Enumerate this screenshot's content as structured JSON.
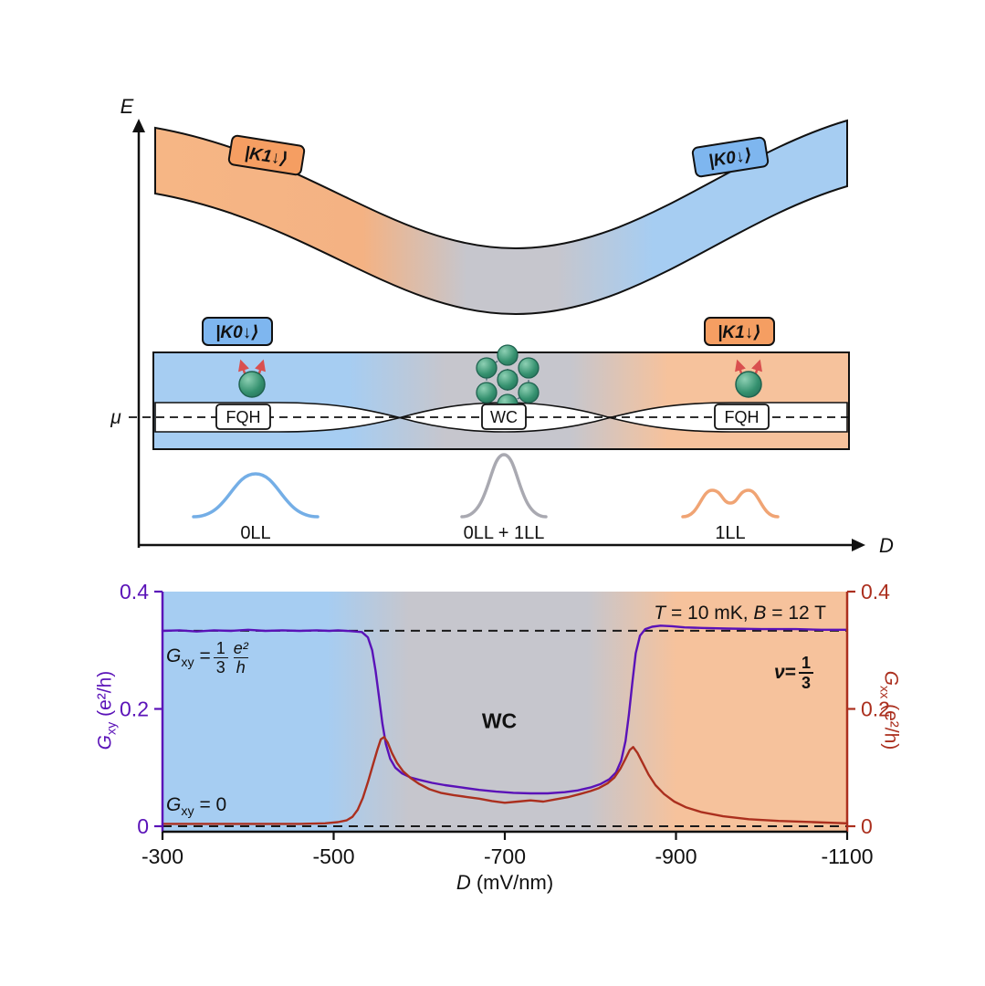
{
  "colors": {
    "blue_region": "#a6cdf2",
    "gray_region": "#c6c6cd",
    "orange_region": "#f6c29c",
    "badge_blue": "#7eb6ef",
    "badge_orange": "#f59e62",
    "wf_blue": "#74aee6",
    "wf_gray": "#a9a9b1",
    "wf_orange": "#f0a474",
    "sphere_green": "#35916f",
    "flux_red": "#d94f4f",
    "gxy_purple": "#5a12b8",
    "gxx_red": "#ab2f1e"
  },
  "diagram": {
    "axis_e": "E",
    "axis_d": "D",
    "mu": "μ",
    "badge_top_left": "|K1↓⟩",
    "badge_top_right": "|K0↓⟩",
    "badge_band_left": "|K0↓⟩",
    "badge_band_right": "|K1↓⟩",
    "box_left": "FQH",
    "box_center": "WC",
    "box_right": "FQH",
    "wf_left_label": "0LL",
    "wf_center_label": "0LL + 1LL",
    "wf_right_label": "1LL"
  },
  "chart": {
    "cond_t_var": "T",
    "cond_t_rest": " = 10 mK, ",
    "cond_b_var": "B",
    "cond_b_rest": " = 12 T",
    "gxy_var": "G",
    "gxy_sub": "xy",
    "eq": " = ",
    "eq_zero": " = 0",
    "third_num": "1",
    "third_den": "3",
    "e2h_num": "e²",
    "e2h_den": "h",
    "nu_var": "ν",
    "wc_label": "WC",
    "ylabel_left_var": "G",
    "ylabel_left_sub": "xy",
    "ylabel_left_units": " (e²/h)",
    "ylabel_right_var": "G",
    "ylabel_right_sub": "xx",
    "ylabel_right_units": " (e²/h)",
    "xlabel_var": "D",
    "xlabel_units": " (mV/nm)"
  },
  "chart_data": {
    "type": "line",
    "title": "",
    "xlabel": "D (mV/nm)",
    "ylabel_left": "Gxy (e2/h)",
    "ylabel_right": "Gxx (e2/h)",
    "x_range": [
      -300,
      -1100
    ],
    "y_range": [
      0,
      0.4
    ],
    "x_ticks": [
      -300,
      -500,
      -700,
      -900,
      -1100
    ],
    "y_ticks": [
      0,
      0.2,
      0.4
    ],
    "dashed_lines_y": [
      0.3333,
      0
    ],
    "grid": false,
    "annotations": [
      "T = 10 mK, B = 12 T",
      "Gxy = (1/3)(e2/h)",
      "WC",
      "nu = 1/3",
      "Gxy = 0"
    ],
    "regions": [
      {
        "label": "0LL FQH",
        "x_from": -300,
        "x_to": -545,
        "color": "#a6cdf2"
      },
      {
        "label": "WC 0LL+1LL",
        "x_from": -545,
        "x_to": -845,
        "color": "#c6c6cd"
      },
      {
        "label": "1LL FQH",
        "x_from": -845,
        "x_to": -1100,
        "color": "#f6c29c"
      }
    ],
    "series": [
      {
        "name": "Gxy",
        "color": "#5a12b8",
        "x": [
          -300,
          -320,
          -340,
          -360,
          -380,
          -400,
          -420,
          -440,
          -460,
          -480,
          -495,
          -505,
          -515,
          -525,
          -533,
          -540,
          -545,
          -549,
          -553,
          -557,
          -561,
          -566,
          -572,
          -580,
          -590,
          -600,
          -615,
          -630,
          -650,
          -670,
          -690,
          -710,
          -730,
          -750,
          -770,
          -785,
          -800,
          -812,
          -822,
          -830,
          -836,
          -841,
          -845,
          -849,
          -853,
          -858,
          -864,
          -872,
          -882,
          -895,
          -910,
          -930,
          -960,
          -1000,
          -1040,
          -1070,
          -1100
        ],
        "y": [
          0.333,
          0.334,
          0.332,
          0.334,
          0.333,
          0.335,
          0.333,
          0.334,
          0.333,
          0.334,
          0.333,
          0.334,
          0.333,
          0.332,
          0.331,
          0.322,
          0.3,
          0.265,
          0.22,
          0.175,
          0.14,
          0.115,
          0.1,
          0.09,
          0.083,
          0.079,
          0.074,
          0.07,
          0.066,
          0.062,
          0.059,
          0.057,
          0.056,
          0.056,
          0.058,
          0.061,
          0.066,
          0.072,
          0.08,
          0.092,
          0.112,
          0.145,
          0.19,
          0.245,
          0.295,
          0.325,
          0.336,
          0.34,
          0.342,
          0.341,
          0.339,
          0.338,
          0.337,
          0.336,
          0.336,
          0.335,
          0.335
        ]
      },
      {
        "name": "Gxx",
        "color": "#ab2f1e",
        "x": [
          -300,
          -340,
          -380,
          -420,
          -460,
          -490,
          -505,
          -515,
          -522,
          -528,
          -534,
          -540,
          -546,
          -551,
          -555,
          -559,
          -563,
          -568,
          -574,
          -581,
          -590,
          -600,
          -612,
          -625,
          -640,
          -655,
          -670,
          -685,
          -700,
          -715,
          -730,
          -745,
          -760,
          -775,
          -788,
          -800,
          -810,
          -820,
          -828,
          -835,
          -841,
          -846,
          -850,
          -855,
          -861,
          -868,
          -876,
          -886,
          -898,
          -912,
          -930,
          -955,
          -985,
          -1020,
          -1060,
          -1100
        ],
        "y": [
          0.004,
          0.004,
          0.004,
          0.004,
          0.004,
          0.005,
          0.007,
          0.01,
          0.016,
          0.028,
          0.048,
          0.075,
          0.105,
          0.13,
          0.148,
          0.152,
          0.143,
          0.125,
          0.108,
          0.094,
          0.082,
          0.072,
          0.063,
          0.057,
          0.053,
          0.05,
          0.047,
          0.043,
          0.04,
          0.042,
          0.044,
          0.042,
          0.046,
          0.05,
          0.055,
          0.06,
          0.065,
          0.073,
          0.083,
          0.098,
          0.115,
          0.13,
          0.135,
          0.125,
          0.108,
          0.088,
          0.07,
          0.055,
          0.042,
          0.032,
          0.024,
          0.017,
          0.012,
          0.009,
          0.007,
          0.005
        ]
      }
    ]
  }
}
